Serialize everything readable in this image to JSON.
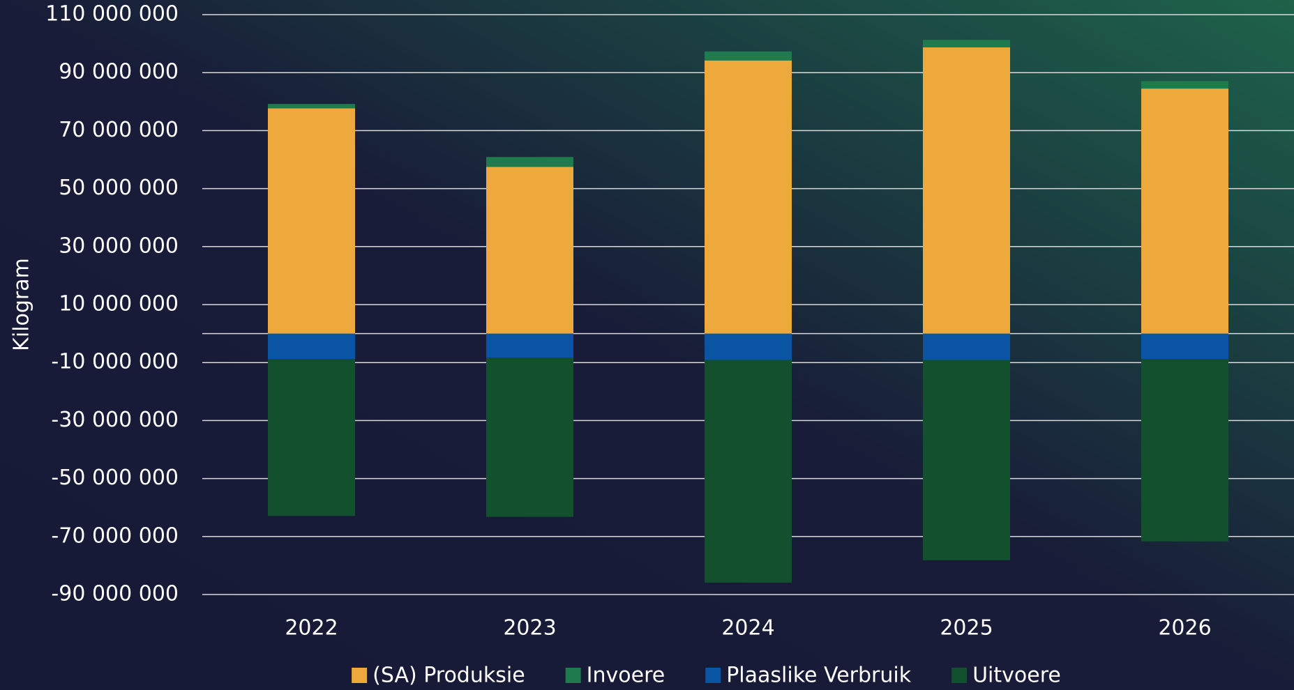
{
  "chart_data": {
    "type": "stacked-bar",
    "y_label": "Kilogram",
    "categories": [
      "2022",
      "2023",
      "2024",
      "2025",
      "2026"
    ],
    "series": [
      {
        "name": "(SA) Produksie",
        "color": "#eda93b",
        "values": [
          77700000,
          57500000,
          94200000,
          98700000,
          84500000
        ]
      },
      {
        "name": "Invoere",
        "color": "#1f7a4d",
        "values": [
          1500000,
          3400000,
          3100000,
          2600000,
          2600000
        ]
      },
      {
        "name": "Plaaslike Verbruik",
        "color": "#0a55a3",
        "values": [
          -8800000,
          -8300000,
          -9100000,
          -9100000,
          -8800000
        ]
      },
      {
        "name": "Uitvoere",
        "color": "#12502e",
        "values": [
          -54100000,
          -54900000,
          -76800000,
          -69100000,
          -62900000
        ]
      }
    ],
    "ylim": [
      -90000000,
      110000000
    ],
    "yticks": [
      {
        "value": -90000000,
        "label": "-90 000 000"
      },
      {
        "value": -70000000,
        "label": "-70 000 000"
      },
      {
        "value": -50000000,
        "label": "-50 000 000"
      },
      {
        "value": -30000000,
        "label": "-30 000 000"
      },
      {
        "value": -10000000,
        "label": "-10 000 000"
      },
      {
        "value": 10000000,
        "label": "10 000 000"
      },
      {
        "value": 30000000,
        "label": "30 000 000"
      },
      {
        "value": 50000000,
        "label": "50 000 000"
      },
      {
        "value": 70000000,
        "label": "70 000 000"
      },
      {
        "value": 90000000,
        "label": "90 000 000"
      },
      {
        "value": 110000000,
        "label": "110 000 000"
      }
    ],
    "grid": true
  }
}
